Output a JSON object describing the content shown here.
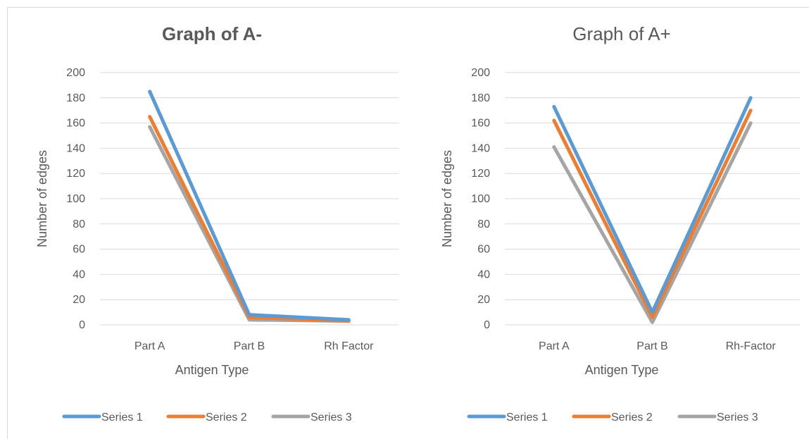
{
  "chart_data": [
    {
      "type": "line",
      "title": "Graph of A-",
      "title_bold": true,
      "categories": [
        "Part A",
        "Part B",
        "Rh Factor"
      ],
      "series": [
        {
          "name": "Series 1",
          "values": [
            185,
            8,
            4
          ],
          "color": "#5b9bd5"
        },
        {
          "name": "Series 2",
          "values": [
            165,
            6,
            3
          ],
          "color": "#ed7d31"
        },
        {
          "name": "Series 3",
          "values": [
            157,
            4,
            3
          ],
          "color": "#a5a5a5"
        }
      ],
      "xlabel": "Antigen Type",
      "ylabel": "Number of edges",
      "ylim": [
        0,
        200
      ],
      "yticks": [
        "0",
        "20",
        "40",
        "60",
        "80",
        "100",
        "120",
        "140",
        "160",
        "180",
        "200"
      ],
      "grid": true,
      "legend": "bottom"
    },
    {
      "type": "line",
      "title": "Graph of A+",
      "title_bold": false,
      "categories": [
        "Part A",
        "Part B",
        "Rh-Factor"
      ],
      "series": [
        {
          "name": "Series 1",
          "values": [
            173,
            10,
            180
          ],
          "color": "#5b9bd5"
        },
        {
          "name": "Series 2",
          "values": [
            162,
            6,
            170
          ],
          "color": "#ed7d31"
        },
        {
          "name": "Series 3",
          "values": [
            141,
            2,
            160
          ],
          "color": "#a5a5a5"
        }
      ],
      "xlabel": "Antigen Type",
      "ylabel": "Number of edges",
      "ylim": [
        0,
        200
      ],
      "yticks": [
        "0",
        "20",
        "40",
        "60",
        "80",
        "100",
        "120",
        "140",
        "160",
        "180",
        "200"
      ],
      "grid": true,
      "legend": "bottom"
    }
  ]
}
